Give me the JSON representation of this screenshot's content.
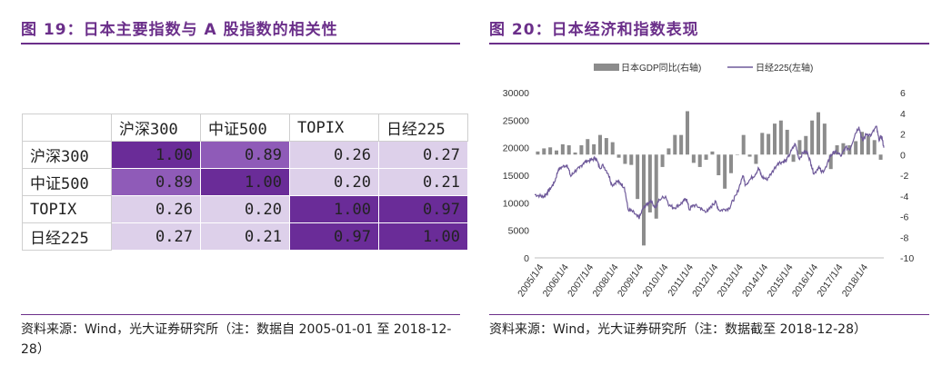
{
  "left": {
    "title": "图 19：日本主要指数与 A 股指数的相关性",
    "source": "资料来源：Wind，光大证券研究所（注：数据自 2005-01-01 至 2018-12-28）",
    "chart_data": {
      "type": "table",
      "columns": [
        "沪深300",
        "中证500",
        "TOPIX",
        "日经225"
      ],
      "rows": [
        {
          "name": "沪深300",
          "values": [
            "1.00",
            "0.89",
            "0.26",
            "0.27"
          ]
        },
        {
          "name": "中证500",
          "values": [
            "0.89",
            "1.00",
            "0.20",
            "0.21"
          ]
        },
        {
          "name": "TOPIX",
          "values": [
            "0.26",
            "0.20",
            "1.00",
            "0.97"
          ]
        },
        {
          "name": "日经225",
          "values": [
            "0.27",
            "0.21",
            "0.97",
            "1.00"
          ]
        }
      ],
      "colors": {
        "high": "#6a2c98",
        "mid": "#8f5bb8",
        "low": "#ddd0ea"
      }
    }
  },
  "right": {
    "title": "图 20：日本经济和指数表现",
    "source": "资料来源：Wind，光大证券研究所（注：数据截至 2018-12-28）",
    "chart_data": {
      "type": "bar+line",
      "x_ticks": [
        "2005/1/4",
        "2006/1/4",
        "2007/1/4",
        "2008/1/4",
        "2009/1/4",
        "2010/1/4",
        "2011/1/4",
        "2012/1/4",
        "2013/1/4",
        "2014/1/4",
        "2015/1/4",
        "2016/1/4",
        "2017/1/4",
        "2018/1/4"
      ],
      "left_axis": {
        "ticks": [
          "0",
          "5000",
          "10000",
          "15000",
          "20000",
          "25000",
          "30000"
        ],
        "ylim": [
          0,
          30000
        ]
      },
      "right_axis": {
        "ticks": [
          "-10",
          "-8",
          "-6",
          "-4",
          "-2",
          "0",
          "2",
          "4",
          "6"
        ],
        "ylim": [
          -10,
          6
        ]
      },
      "legend": [
        "日本GDP同比(右轴)",
        "日经225(左轴)"
      ],
      "legend_position": "top",
      "colors": {
        "bar": "#8c8c8c",
        "line": "#6f5a9a"
      },
      "series": [
        {
          "name": "日本GDP同比(右轴)",
          "axis": "right",
          "points": [
            [
              2005.0,
              0.3
            ],
            [
              2005.25,
              0.6
            ],
            [
              2005.5,
              0.7
            ],
            [
              2005.75,
              0.4
            ],
            [
              2006.0,
              1.0
            ],
            [
              2006.25,
              0.9
            ],
            [
              2006.5,
              0.2
            ],
            [
              2006.75,
              0.9
            ],
            [
              2007.0,
              1.5
            ],
            [
              2007.25,
              1.0
            ],
            [
              2007.5,
              1.9
            ],
            [
              2007.75,
              1.6
            ],
            [
              2008.0,
              1.2
            ],
            [
              2008.25,
              -0.3
            ],
            [
              2008.5,
              -0.9
            ],
            [
              2008.75,
              -1.0
            ],
            [
              2009.0,
              -4.3
            ],
            [
              2009.25,
              -8.8
            ],
            [
              2009.5,
              -5.6
            ],
            [
              2009.75,
              -6.2
            ],
            [
              2010.0,
              -1.2
            ],
            [
              2010.25,
              0.6
            ],
            [
              2010.5,
              1.9
            ],
            [
              2010.75,
              1.9
            ],
            [
              2011.0,
              4.2
            ],
            [
              2011.25,
              -0.8
            ],
            [
              2011.5,
              -1.2
            ],
            [
              2011.75,
              -0.5
            ],
            [
              2012.0,
              0.3
            ],
            [
              2012.25,
              -2.0
            ],
            [
              2012.5,
              -3.3
            ],
            [
              2012.75,
              -1.8
            ],
            [
              2013.0,
              0.0
            ],
            [
              2013.25,
              1.9
            ],
            [
              2013.5,
              -0.2
            ],
            [
              2013.75,
              -0.9
            ],
            [
              2014.0,
              2.1
            ],
            [
              2014.25,
              2.0
            ],
            [
              2014.5,
              3.0
            ],
            [
              2014.75,
              3.3
            ],
            [
              2015.0,
              2.4
            ],
            [
              2015.25,
              -0.7
            ],
            [
              2015.5,
              1.4
            ],
            [
              2015.75,
              1.8
            ],
            [
              2016.0,
              3.3
            ],
            [
              2016.25,
              4.1
            ],
            [
              2016.5,
              3.0
            ],
            [
              2016.75,
              -1.4
            ],
            [
              2017.0,
              0.9
            ],
            [
              2017.25,
              1.1
            ],
            [
              2017.5,
              0.9
            ],
            [
              2017.75,
              1.3
            ],
            [
              2018.0,
              2.2
            ],
            [
              2018.25,
              1.8
            ],
            [
              2018.5,
              1.4
            ],
            [
              2018.75,
              -0.5
            ]
          ]
        },
        {
          "name": "日经225(左轴)",
          "axis": "left",
          "points": [
            [
              2005.0,
              11500
            ],
            [
              2005.2,
              11300
            ],
            [
              2005.35,
              11100
            ],
            [
              2005.5,
              11800
            ],
            [
              2005.65,
              12700
            ],
            [
              2005.8,
              13800
            ],
            [
              2005.95,
              16000
            ],
            [
              2006.1,
              16500
            ],
            [
              2006.3,
              16900
            ],
            [
              2006.45,
              14800
            ],
            [
              2006.6,
              15700
            ],
            [
              2006.8,
              16300
            ],
            [
              2006.95,
              17200
            ],
            [
              2007.1,
              17600
            ],
            [
              2007.3,
              17800
            ],
            [
              2007.45,
              18200
            ],
            [
              2007.6,
              16400
            ],
            [
              2007.75,
              16800
            ],
            [
              2007.95,
              15300
            ],
            [
              2008.1,
              13200
            ],
            [
              2008.3,
              13900
            ],
            [
              2008.45,
              13500
            ],
            [
              2008.6,
              12800
            ],
            [
              2008.75,
              8700
            ],
            [
              2008.9,
              8500
            ],
            [
              2009.1,
              7600
            ],
            [
              2009.2,
              7300
            ],
            [
              2009.35,
              9000
            ],
            [
              2009.5,
              9700
            ],
            [
              2009.65,
              10400
            ],
            [
              2009.85,
              9100
            ],
            [
              2010.0,
              10600
            ],
            [
              2010.25,
              11200
            ],
            [
              2010.4,
              9500
            ],
            [
              2010.6,
              9100
            ],
            [
              2010.8,
              9600
            ],
            [
              2010.95,
              10200
            ],
            [
              2011.1,
              10700
            ],
            [
              2011.2,
              8700
            ],
            [
              2011.35,
              9600
            ],
            [
              2011.6,
              9200
            ],
            [
              2011.75,
              8600
            ],
            [
              2011.95,
              8500
            ],
            [
              2012.15,
              9700
            ],
            [
              2012.25,
              10200
            ],
            [
              2012.4,
              8600
            ],
            [
              2012.6,
              8800
            ],
            [
              2012.8,
              9000
            ],
            [
              2012.95,
              10400
            ],
            [
              2013.1,
              11500
            ],
            [
              2013.35,
              15000
            ],
            [
              2013.45,
              13300
            ],
            [
              2013.65,
              14300
            ],
            [
              2013.85,
              15200
            ],
            [
              2013.98,
              16300
            ],
            [
              2014.1,
              14800
            ],
            [
              2014.3,
              14200
            ],
            [
              2014.5,
              15400
            ],
            [
              2014.75,
              17200
            ],
            [
              2014.95,
              17450
            ],
            [
              2015.1,
              17700
            ],
            [
              2015.3,
              19500
            ],
            [
              2015.45,
              20700
            ],
            [
              2015.6,
              18000
            ],
            [
              2015.8,
              19300
            ],
            [
              2015.95,
              19000
            ],
            [
              2016.1,
              16800
            ],
            [
              2016.2,
              15200
            ],
            [
              2016.4,
              16600
            ],
            [
              2016.5,
              15500
            ],
            [
              2016.7,
              16500
            ],
            [
              2016.85,
              18500
            ],
            [
              2016.98,
              19100
            ],
            [
              2017.1,
              19200
            ],
            [
              2017.3,
              18500
            ],
            [
              2017.45,
              20000
            ],
            [
              2017.65,
              19800
            ],
            [
              2017.85,
              22500
            ],
            [
              2018.0,
              23800
            ],
            [
              2018.15,
              21200
            ],
            [
              2018.3,
              22500
            ],
            [
              2018.5,
              22300
            ],
            [
              2018.7,
              23900
            ],
            [
              2018.8,
              21500
            ],
            [
              2018.92,
              22000
            ],
            [
              2019.0,
              20000
            ]
          ]
        }
      ]
    }
  }
}
